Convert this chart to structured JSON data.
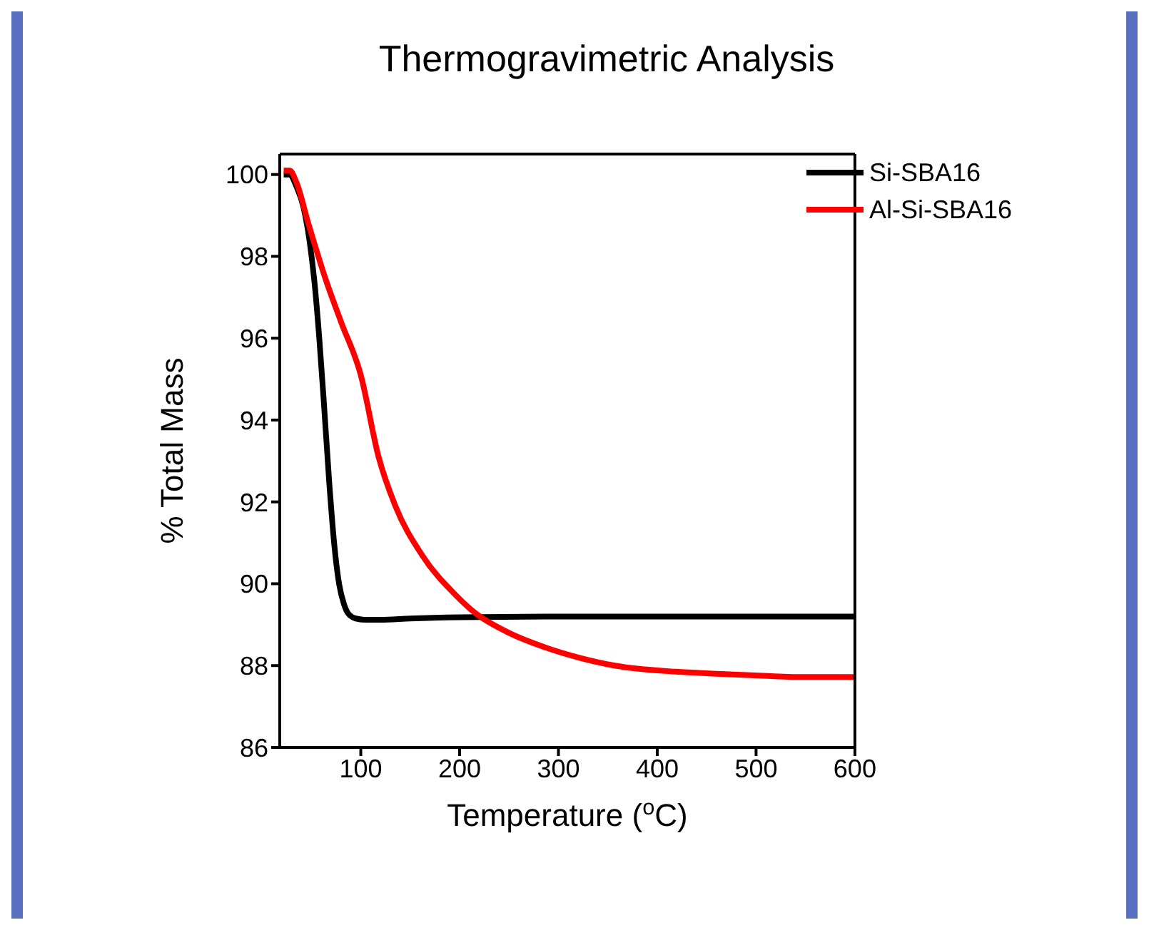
{
  "chart_data": {
    "type": "line",
    "title": "Thermogravimetric Analysis",
    "xlabel": "Temperature ($^{o}$C)",
    "ylabel": "% Total Mass",
    "xlim": [
      18,
      600
    ],
    "ylim": [
      86,
      100.5
    ],
    "xticks": [
      100,
      200,
      300,
      400,
      500,
      600
    ],
    "yticks": [
      86,
      88,
      90,
      92,
      94,
      96,
      98,
      100
    ],
    "legend": "top right",
    "marker": "none",
    "line_style": "solid",
    "series": [
      {
        "name": "Si-SBA16",
        "color": "#000000",
        "x": [
          22,
          28,
          35,
          42,
          48,
          53,
          58,
          63,
          68,
          73,
          78,
          83,
          88,
          95,
          105,
          120,
          150,
          200,
          300,
          400,
          500,
          600
        ],
        "values": [
          100,
          100,
          99.7,
          99.2,
          98.4,
          97.4,
          96,
          94.3,
          92.5,
          91,
          90,
          89.5,
          89.25,
          89.15,
          89.12,
          89.12,
          89.15,
          89.18,
          89.2,
          89.2,
          89.2,
          89.2
        ]
      },
      {
        "name": "Al-Si-SBA16",
        "color": "#ff0000",
        "x": [
          22,
          28,
          35,
          47,
          65,
          80,
          100,
          118,
          135,
          162,
          197,
          215,
          250,
          286,
          320,
          357,
          419,
          460,
          508,
          550,
          600
        ],
        "values": [
          100.1,
          100.1,
          99.8,
          98.8,
          97.4,
          96.4,
          95.1,
          93.1,
          91.9,
          90.7,
          89.7,
          89.3,
          88.8,
          88.45,
          88.2,
          88,
          87.85,
          87.8,
          87.75,
          87.72,
          87.72
        ]
      }
    ]
  }
}
